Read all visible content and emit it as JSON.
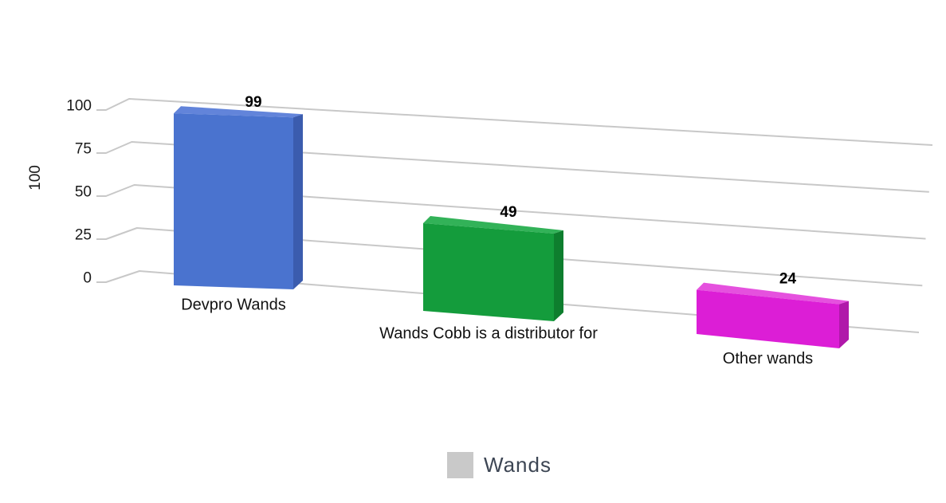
{
  "chart_data": {
    "type": "bar",
    "projection": "3d-perspective",
    "title": "",
    "xlabel": "",
    "ylabel": "100",
    "categories": [
      "Devpro Wands",
      "Wands Cobb is a distributor for",
      "Other wands"
    ],
    "series": [
      {
        "name": "Wands",
        "values": [
          99,
          49,
          24
        ]
      }
    ],
    "data_labels": [
      "99",
      "49",
      "24"
    ],
    "y_ticks": [
      0,
      25,
      50,
      75,
      100
    ],
    "ylim": [
      0,
      100
    ],
    "grid": true,
    "gridline_color": "#c8c8c8",
    "tick_label_color": "#1a1a1a",
    "value_label_color": "#000000",
    "category_label_color": "#111111",
    "bar_styles": [
      {
        "front": "#4a73cf",
        "side": "#3b5cae",
        "top": "#6284da"
      },
      {
        "front": "#149c3c",
        "side": "#0e7e2e",
        "top": "#32b258"
      },
      {
        "front": "#dc1ed6",
        "side": "#b018aa",
        "top": "#e551de"
      }
    ],
    "legend": {
      "position": "bottom",
      "entries": [
        {
          "label": "Wands",
          "swatch_color": "#c9c9c9"
        }
      ]
    }
  }
}
